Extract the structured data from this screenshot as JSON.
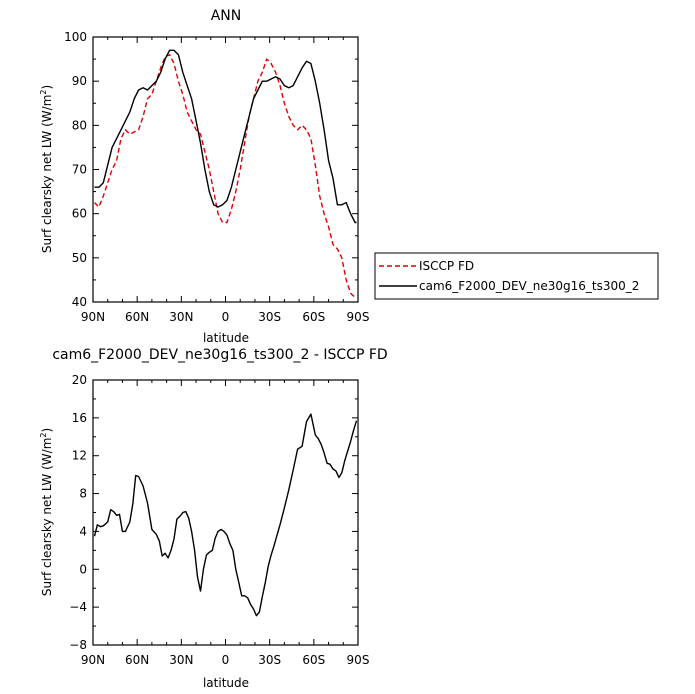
{
  "chart_data": [
    {
      "type": "line",
      "title": "ANN",
      "xlabel": "latitude",
      "ylabel": "Surf clearsky net LW (W/m²)",
      "ylabel_main": "Surf clearsky net LW (W/m",
      "ylabel_sup": "2",
      "ylabel_tail": ")",
      "xlim": [
        -90,
        90
      ],
      "ylim": [
        40,
        100
      ],
      "xticks": [
        -90,
        -60,
        -30,
        0,
        30,
        60,
        90
      ],
      "xtick_labels": [
        "90N",
        "60N",
        "30N",
        "0",
        "30S",
        "60S",
        "90S"
      ],
      "yticks": [
        40,
        50,
        60,
        70,
        80,
        90,
        100
      ],
      "ytick_labels": [
        "40",
        "50",
        "60",
        "70",
        "80",
        "90",
        "100"
      ],
      "legend_position": "right",
      "series": [
        {
          "name": "ISCCP FD",
          "color": "#e00000",
          "dash": "dashed",
          "x": [
            -89,
            -86,
            -83,
            -80,
            -77,
            -74,
            -71,
            -68,
            -65,
            -62,
            -59,
            -56,
            -53,
            -50,
            -47,
            -44,
            -41,
            -38,
            -35,
            -32,
            -29,
            -26,
            -23,
            -20,
            -17,
            -14,
            -11,
            -8,
            -5,
            -2,
            1,
            4,
            7,
            10,
            13,
            16,
            19,
            22,
            25,
            28,
            31,
            34,
            37,
            40,
            43,
            46,
            49,
            52,
            55,
            58,
            61,
            64,
            67,
            70,
            73,
            76,
            79,
            82,
            85,
            88,
            89
          ],
          "y": [
            62.5,
            61.5,
            64,
            67,
            70,
            72,
            77,
            79,
            78,
            78.5,
            79,
            82,
            86,
            87,
            90,
            93,
            95.5,
            96,
            94,
            90,
            87,
            83,
            81,
            79,
            78,
            74,
            70,
            65,
            60,
            58,
            58,
            61,
            65,
            70,
            76,
            82,
            86,
            90,
            92,
            95,
            94,
            92,
            89,
            85,
            82,
            80,
            79,
            80,
            79,
            77,
            71,
            64,
            60,
            57,
            53,
            52,
            50,
            45,
            42,
            41,
            41
          ]
        },
        {
          "name": "cam6_F2000_DEV_ne30g16_ts300_2",
          "color": "#000000",
          "dash": "solid",
          "x": [
            -89,
            -86,
            -83,
            -80,
            -77,
            -74,
            -71,
            -68,
            -65,
            -62,
            -59,
            -56,
            -53,
            -50,
            -47,
            -44,
            -41,
            -38,
            -35,
            -32,
            -29,
            -26,
            -23,
            -20,
            -17,
            -14,
            -11,
            -8,
            -5,
            -2,
            1,
            4,
            7,
            10,
            13,
            16,
            19,
            22,
            25,
            28,
            31,
            34,
            37,
            40,
            43,
            46,
            49,
            52,
            55,
            58,
            61,
            64,
            67,
            70,
            73,
            76,
            79,
            82,
            85,
            88,
            89
          ],
          "y": [
            66,
            66,
            67,
            71,
            75,
            77,
            79,
            81,
            83,
            86,
            88,
            88.5,
            88,
            89,
            90,
            92,
            95,
            97,
            97,
            96,
            92,
            89,
            86,
            81,
            76,
            70,
            65,
            62,
            61.5,
            62,
            63,
            66,
            70,
            74,
            78,
            82,
            86,
            88,
            90,
            90,
            90.5,
            91,
            90.5,
            89,
            88.5,
            89,
            91,
            93,
            94.5,
            94,
            90,
            85,
            79,
            72,
            68,
            62,
            62,
            62.5,
            60,
            58,
            58
          ]
        }
      ]
    },
    {
      "type": "line",
      "title": "cam6_F2000_DEV_ne30g16_ts300_2 - ISCCP FD",
      "xlabel": "latitude",
      "ylabel": "Surf clearsky net LW (W/m²)",
      "ylabel_main": "Surf clearsky net LW (W/m",
      "ylabel_sup": "2",
      "ylabel_tail": ")",
      "xlim": [
        -90,
        90
      ],
      "ylim": [
        -8,
        20
      ],
      "xticks": [
        -90,
        -60,
        -30,
        0,
        30,
        60,
        90
      ],
      "xtick_labels": [
        "90N",
        "60N",
        "30N",
        "0",
        "30S",
        "60S",
        "90S"
      ],
      "yticks": [
        -8,
        -4,
        0,
        4,
        8,
        12,
        16,
        20
      ],
      "ytick_labels": [
        "−8",
        "−4",
        "0",
        "4",
        "8",
        "12",
        "16",
        "20"
      ],
      "series": [
        {
          "color": "#000000",
          "dash": "solid",
          "x": [
            -89,
            -87,
            -85,
            -83,
            -80,
            -78,
            -76,
            -74,
            -72,
            -70,
            -68,
            -65,
            -63,
            -61,
            -59,
            -56,
            -53,
            -50,
            -47,
            -45,
            -43,
            -41,
            -39,
            -37,
            -35,
            -33,
            -31,
            -29,
            -27,
            -25,
            -23,
            -21,
            -19,
            -17,
            -15,
            -13,
            -11,
            -9,
            -7,
            -5,
            -3,
            -1,
            1,
            3,
            5,
            7,
            9,
            11,
            13,
            15,
            17,
            19,
            21,
            23,
            25,
            27,
            29,
            31,
            33,
            35,
            37,
            40,
            43,
            46,
            49,
            52,
            55,
            58,
            61,
            63,
            65,
            67,
            69,
            71,
            73,
            75,
            77,
            79,
            81,
            83,
            85,
            87,
            89
          ],
          "y": [
            3.5,
            4.7,
            4.5,
            4.6,
            5,
            6.3,
            6.1,
            5.7,
            5.8,
            4,
            4,
            5,
            6.9,
            9.9,
            9.8,
            8.8,
            7,
            4.2,
            3.7,
            3,
            1.4,
            1.7,
            1.2,
            2,
            3.2,
            5.3,
            5.6,
            6,
            6.1,
            5.4,
            4,
            2,
            -0.8,
            -2.3,
            0,
            1.5,
            1.8,
            2,
            3.3,
            4,
            4.2,
            4,
            3.6,
            2.7,
            2,
            0,
            -1.4,
            -2.8,
            -2.8,
            -3,
            -3.7,
            -4.2,
            -4.9,
            -4.5,
            -2.9,
            -1.4,
            0.3,
            1.5,
            2.5,
            3.6,
            4.7,
            6.5,
            8.4,
            10.5,
            12.7,
            13,
            15.6,
            16.4,
            14.2,
            13.8,
            13.2,
            12.3,
            11.2,
            11.1,
            10.6,
            10.4,
            9.7,
            10.2,
            11.5,
            12.5,
            13.5,
            14.7,
            15.7
          ]
        }
      ]
    }
  ]
}
